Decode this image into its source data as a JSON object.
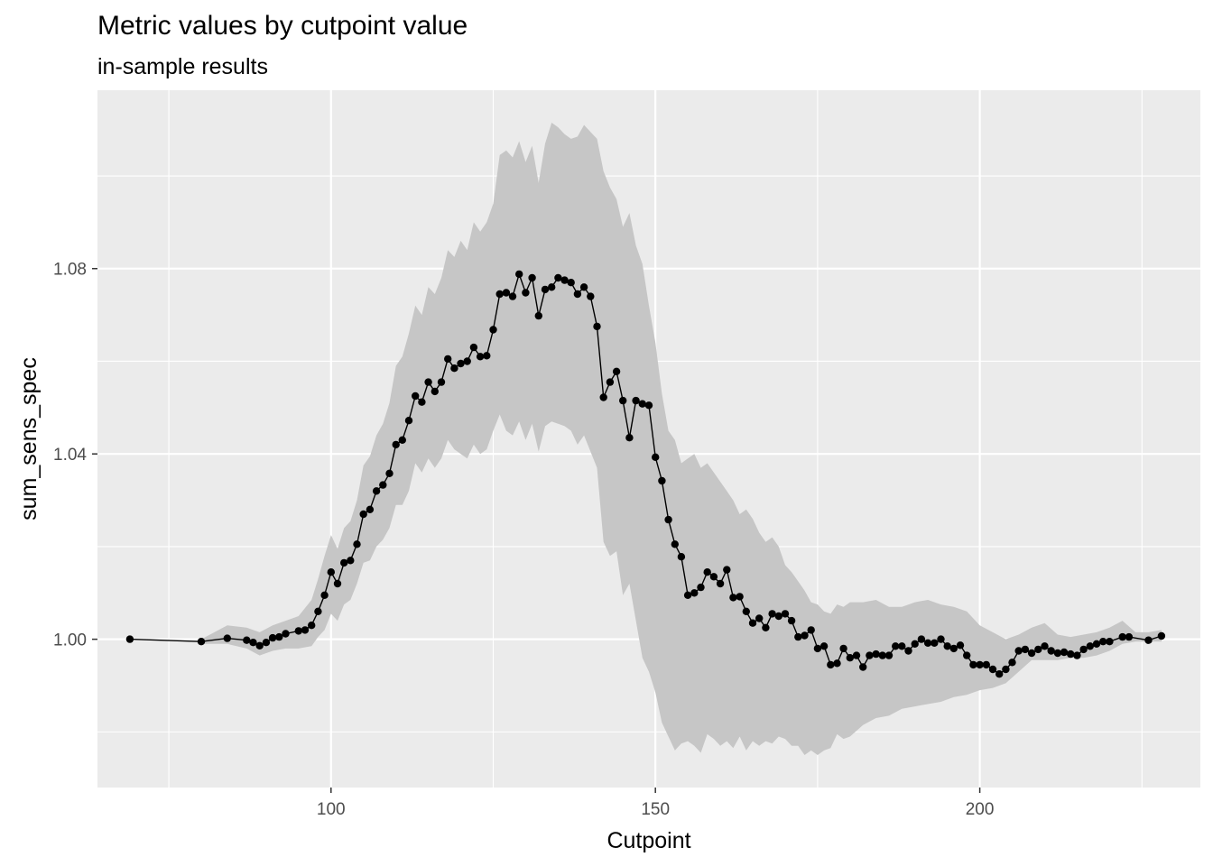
{
  "chart_data": {
    "type": "line",
    "title": "Metric values by cutpoint value",
    "subtitle": "in-sample results",
    "xlabel": "Cutpoint",
    "ylabel": "sum_sens_spec",
    "xlim": [
      64,
      234
    ],
    "ylim": [
      0.968,
      1.1185
    ],
    "x_ticks": [
      100,
      150,
      200
    ],
    "y_ticks": [
      1.0,
      1.04,
      1.08
    ],
    "x_tick_labels": [
      "100",
      "150",
      "200"
    ],
    "y_tick_labels": [
      "1.00",
      "1.04",
      "1.08"
    ],
    "grid": true,
    "background": "#ebebeb",
    "ribbon_color": "#c6c6c6",
    "line_color": "#000000",
    "point_color": "#000000",
    "series": [
      {
        "x": [
          69,
          80,
          84,
          87,
          88,
          89,
          90,
          91,
          92,
          93,
          95,
          96,
          97,
          98,
          99,
          100,
          101,
          102,
          103,
          104,
          105,
          106,
          107,
          108,
          109,
          110,
          111,
          112,
          113,
          114,
          115,
          116,
          117,
          118,
          119,
          120,
          121,
          122,
          123,
          124,
          125,
          126,
          127,
          128,
          129,
          130,
          131,
          132,
          133,
          134,
          135,
          136,
          137,
          138,
          139,
          140,
          141,
          142,
          143,
          144,
          145,
          146,
          147,
          148,
          149,
          150,
          151,
          152,
          153,
          154,
          155,
          156,
          157,
          158,
          159,
          160,
          161,
          162,
          163,
          164,
          165,
          166,
          167,
          168,
          169,
          170,
          171,
          172,
          173,
          174,
          175,
          176,
          177,
          178,
          179,
          180,
          181,
          182,
          183,
          184,
          185,
          186,
          187,
          188,
          189,
          190,
          191,
          192,
          193,
          194,
          195,
          196,
          197,
          198,
          199,
          200,
          201,
          202,
          203,
          204,
          205,
          206,
          207,
          208,
          209,
          210,
          211,
          212,
          213,
          214,
          215,
          216,
          217,
          218,
          219,
          220,
          222,
          223,
          226,
          228
        ],
        "y": [
          1.0,
          0.9995,
          1.0002,
          0.9998,
          0.9993,
          0.9986,
          0.9993,
          1.0003,
          1.0005,
          1.0012,
          1.0018,
          1.002,
          1.003,
          1.006,
          1.0095,
          1.0145,
          1.012,
          1.0165,
          1.017,
          1.0205,
          1.027,
          1.028,
          1.032,
          1.0333,
          1.0358,
          1.042,
          1.043,
          1.0472,
          1.0525,
          1.0512,
          1.0555,
          1.0535,
          1.0555,
          1.0605,
          1.0585,
          1.0595,
          1.06,
          1.063,
          1.061,
          1.0612,
          1.0668,
          1.0745,
          1.0748,
          1.074,
          1.0788,
          1.0748,
          1.078,
          1.0698,
          1.0755,
          1.076,
          1.078,
          1.0775,
          1.077,
          1.0745,
          1.076,
          1.074,
          1.0675,
          1.0522,
          1.0555,
          1.0578,
          1.0515,
          1.0435,
          1.0515,
          1.0508,
          1.0505,
          1.0393,
          1.0342,
          1.0258,
          1.0205,
          1.0178,
          1.0095,
          1.01,
          1.0112,
          1.0145,
          1.0135,
          1.012,
          1.015,
          1.009,
          1.0092,
          1.006,
          1.0035,
          1.0045,
          1.0025,
          1.0055,
          1.005,
          1.0055,
          1.004,
          1.0005,
          1.0008,
          1.002,
          0.998,
          0.9985,
          0.9945,
          0.9948,
          0.998,
          0.996,
          0.9965,
          0.994,
          0.9965,
          0.9968,
          0.9965,
          0.9965,
          0.9985,
          0.9985,
          0.9975,
          0.999,
          1.0,
          0.9992,
          0.9992,
          1.0,
          0.9985,
          0.998,
          0.9987,
          0.9965,
          0.9945,
          0.9945,
          0.9945,
          0.9935,
          0.9925,
          0.9935,
          0.995,
          0.9975,
          0.9978,
          0.997,
          0.9978,
          0.9985,
          0.9975,
          0.997,
          0.9972,
          0.9968,
          0.9965,
          0.9978,
          0.9985,
          0.999,
          0.9995,
          0.9995,
          1.0005,
          1.0005,
          0.9998,
          1.0007
        ]
      }
    ],
    "ribbon": {
      "x": [
        80,
        84,
        87,
        89,
        91,
        93,
        95,
        97,
        98,
        99,
        100,
        101,
        102,
        103,
        104,
        105,
        106,
        107,
        108,
        109,
        110,
        111,
        112,
        113,
        114,
        115,
        116,
        117,
        118,
        119,
        120,
        121,
        122,
        123,
        124,
        125,
        126,
        127,
        128,
        129,
        130,
        131,
        132,
        133,
        134,
        135,
        136,
        137,
        138,
        139,
        140,
        141,
        142,
        143,
        144,
        145,
        146,
        147,
        148,
        149,
        150,
        151,
        152,
        153,
        154,
        155,
        156,
        157,
        158,
        159,
        160,
        161,
        162,
        163,
        164,
        165,
        166,
        167,
        168,
        169,
        170,
        171,
        172,
        173,
        174,
        175,
        176,
        177,
        178,
        179,
        180,
        182,
        184,
        186,
        188,
        190,
        192,
        194,
        196,
        198,
        200,
        202,
        204,
        206,
        208,
        210,
        212,
        214,
        216,
        218,
        220,
        222,
        224,
        226,
        228
      ],
      "upper": [
        1.0,
        1.003,
        1.0025,
        1.0015,
        1.003,
        1.004,
        1.005,
        1.0085,
        1.013,
        1.018,
        1.0225,
        1.0195,
        1.024,
        1.0255,
        1.03,
        1.0375,
        1.0395,
        1.044,
        1.0465,
        1.051,
        1.059,
        1.061,
        1.066,
        1.072,
        1.07,
        1.076,
        1.0745,
        1.078,
        1.084,
        1.0825,
        1.086,
        1.084,
        1.09,
        1.088,
        1.09,
        1.094,
        1.1045,
        1.1055,
        1.104,
        1.1075,
        1.103,
        1.1065,
        1.0985,
        1.107,
        1.1115,
        1.1105,
        1.109,
        1.108,
        1.1085,
        1.111,
        1.1095,
        1.108,
        1.101,
        1.0975,
        1.095,
        1.089,
        1.092,
        1.085,
        1.081,
        1.072,
        1.064,
        1.053,
        1.045,
        1.043,
        1.038,
        1.039,
        1.04,
        1.037,
        1.038,
        1.036,
        1.034,
        1.032,
        1.03,
        1.027,
        1.028,
        1.026,
        1.023,
        1.021,
        1.022,
        1.02,
        1.016,
        1.0145,
        1.0125,
        1.0105,
        1.008,
        1.0075,
        1.006,
        1.0055,
        1.0075,
        1.007,
        1.008,
        1.008,
        1.0085,
        1.007,
        1.007,
        1.008,
        1.0085,
        1.0075,
        1.007,
        1.006,
        1.003,
        1.0015,
        1.0,
        1.001,
        1.0025,
        1.0035,
        1.001,
        1.0005,
        1.001,
        1.0015,
        1.0025,
        1.004,
        1.0015,
        1.0015,
        1.002
      ],
      "lower": [
        0.999,
        0.999,
        0.998,
        0.9965,
        0.9975,
        0.998,
        0.998,
        0.9985,
        1.0005,
        1.002,
        1.0055,
        1.004,
        1.0075,
        1.0085,
        1.012,
        1.0165,
        1.017,
        1.02,
        1.0215,
        1.024,
        1.029,
        1.029,
        1.032,
        1.038,
        1.036,
        1.039,
        1.037,
        1.039,
        1.043,
        1.041,
        1.04,
        1.039,
        1.042,
        1.04,
        1.041,
        1.045,
        1.0485,
        1.045,
        1.044,
        1.047,
        1.043,
        1.0465,
        1.0405,
        1.046,
        1.047,
        1.0465,
        1.046,
        1.045,
        1.042,
        1.044,
        1.0405,
        1.037,
        1.021,
        1.018,
        1.019,
        1.0095,
        1.012,
        1.004,
        0.996,
        0.993,
        0.9885,
        0.982,
        0.979,
        0.976,
        0.9775,
        0.978,
        0.977,
        0.9755,
        0.9795,
        0.9785,
        0.977,
        0.978,
        0.9765,
        0.979,
        0.976,
        0.978,
        0.977,
        0.978,
        0.9775,
        0.979,
        0.9785,
        0.977,
        0.977,
        0.975,
        0.976,
        0.975,
        0.976,
        0.9765,
        0.9795,
        0.9785,
        0.979,
        0.9815,
        0.983,
        0.9835,
        0.985,
        0.9855,
        0.986,
        0.9865,
        0.9875,
        0.988,
        0.989,
        0.9895,
        0.9905,
        0.993,
        0.9955,
        0.9955,
        0.9955,
        0.996,
        0.996,
        0.9965,
        0.9975,
        0.999,
        0.9995,
        0.9995,
        0.9995
      ]
    }
  }
}
